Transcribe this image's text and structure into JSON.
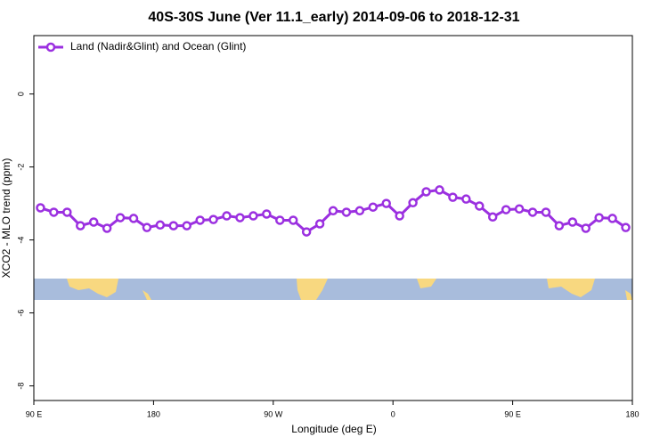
{
  "chart_data": {
    "type": "line",
    "title": "40S-30S June (Ver 11.1_early)   2014-09-06 to 2018-12-31",
    "xlabel": "Longitude (deg E)",
    "ylabel": "XCO2 - MLO trend (ppm)",
    "x": [
      95,
      105,
      115,
      125,
      135,
      145,
      155,
      165,
      175,
      185,
      195,
      205,
      215,
      225,
      235,
      245,
      255,
      265,
      275,
      285,
      295,
      305,
      315,
      325,
      335,
      345,
      355,
      365,
      375,
      385,
      395,
      405,
      415,
      425,
      435,
      445,
      455,
      465,
      475,
      485,
      495,
      505,
      515,
      525,
      535
    ],
    "series": [
      {
        "name": "Land (Nadir&Glint) and Ocean (Glint)",
        "color": "#9b30e0",
        "values": [
          -3.12,
          -3.24,
          -3.24,
          -3.61,
          -3.51,
          -3.68,
          -3.39,
          -3.41,
          -3.66,
          -3.59,
          -3.61,
          -3.61,
          -3.46,
          -3.44,
          -3.34,
          -3.39,
          -3.34,
          -3.29,
          -3.46,
          -3.46,
          -3.78,
          -3.56,
          -3.2,
          -3.24,
          -3.2,
          -3.1,
          -3.0,
          -3.34,
          -2.98,
          -2.68,
          -2.63,
          -2.83,
          -2.88,
          -3.07,
          -3.37,
          -3.17,
          -3.15,
          -3.24,
          -3.24,
          -3.61,
          -3.51,
          -3.68,
          -3.39,
          -3.41,
          -3.66
        ]
      }
    ],
    "xlim": [
      90,
      540
    ],
    "xticks": [
      {
        "value": 90,
        "label": "90 E"
      },
      180,
      {
        "value": 270,
        "label": "90 W"
      },
      {
        "value": 360,
        "label": "0"
      },
      {
        "value": 450,
        "label": "90 E"
      },
      {
        "value": 540,
        "label": "180"
      }
    ],
    "ylim": [
      -8.4,
      1.6
    ],
    "yticks": [
      0,
      -2,
      -4,
      -6,
      -8
    ],
    "legend": "top-left"
  }
}
